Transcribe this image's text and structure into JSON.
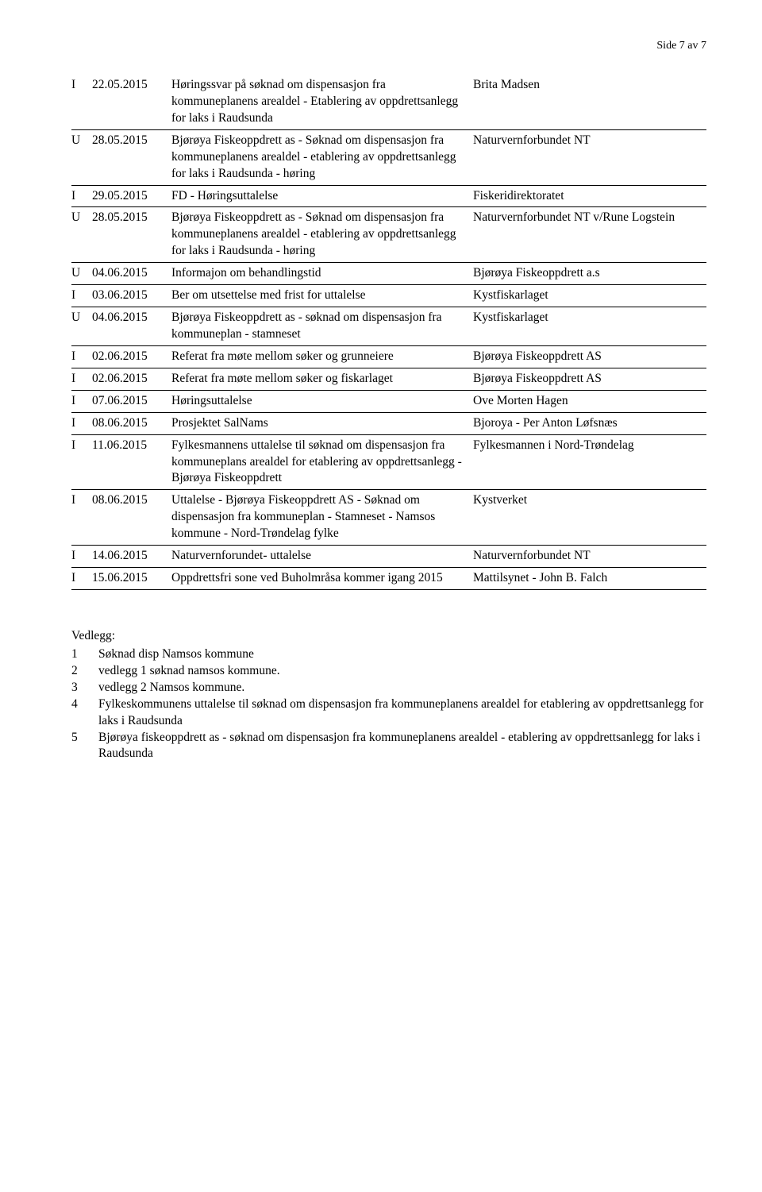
{
  "pageNumber": "Side 7 av 7",
  "rows": [
    {
      "io": "I",
      "date": "22.05.2015",
      "desc": "Høringssvar på søknad om dispensasjon fra kommuneplanens arealdel - Etablering av oppdrettsanlegg for laks i Raudsunda",
      "party": "Brita Madsen"
    },
    {
      "io": "U",
      "date": "28.05.2015",
      "desc": "Bjørøya Fiskeoppdrett as - Søknad om dispensasjon fra kommuneplanens arealdel - etablering av oppdrettsanlegg for laks i Raudsunda - høring",
      "party": "Naturvernforbundet NT"
    },
    {
      "io": "I",
      "date": "29.05.2015",
      "desc": "FD - Høringsuttalelse",
      "party": "Fiskeridirektoratet"
    },
    {
      "io": "U",
      "date": "28.05.2015",
      "desc": "Bjørøya Fiskeoppdrett as - Søknad om dispensasjon fra kommuneplanens arealdel - etablering av oppdrettsanlegg for laks i Raudsunda - høring",
      "party": "Naturvernforbundet NT v/Rune Logstein"
    },
    {
      "io": "U",
      "date": "04.06.2015",
      "desc": "Informajon om behandlingstid",
      "party": "Bjørøya Fiskeoppdrett a.s"
    },
    {
      "io": "I",
      "date": "03.06.2015",
      "desc": "Ber om utsettelse med frist for uttalelse",
      "party": "Kystfiskarlaget"
    },
    {
      "io": "U",
      "date": "04.06.2015",
      "desc": "Bjørøya Fiskeoppdrett as - søknad om dispensasjon fra kommuneplan - stamneset",
      "party": "Kystfiskarlaget"
    },
    {
      "io": "I",
      "date": "02.06.2015",
      "desc": "Referat fra møte mellom søker og grunneiere",
      "party": "Bjørøya Fiskeoppdrett AS"
    },
    {
      "io": "I",
      "date": "02.06.2015",
      "desc": "Referat fra møte mellom søker og fiskarlaget",
      "party": "Bjørøya Fiskeoppdrett AS"
    },
    {
      "io": "I",
      "date": "07.06.2015",
      "desc": "Høringsuttalelse",
      "party": "Ove Morten Hagen"
    },
    {
      "io": "I",
      "date": "08.06.2015",
      "desc": "Prosjektet SalNams",
      "party": "Bjoroya - Per Anton Løfsnæs"
    },
    {
      "io": "I",
      "date": "11.06.2015",
      "desc": "Fylkesmannens uttalelse til søknad om dispensasjon fra kommuneplans arealdel for etablering av oppdrettsanlegg - Bjørøya Fiskeoppdrett",
      "party": "Fylkesmannen i Nord-Trøndelag"
    },
    {
      "io": "I",
      "date": "08.06.2015",
      "desc": "Uttalelse - Bjørøya Fiskeoppdrett AS - Søknad om dispensasjon fra kommuneplan - Stamneset - Namsos kommune - Nord-Trøndelag fylke",
      "party": "Kystverket"
    },
    {
      "io": "I",
      "date": "14.06.2015",
      "desc": "Naturvernforundet- uttalelse",
      "party": "Naturvernforbundet NT"
    },
    {
      "io": "I",
      "date": "15.06.2015",
      "desc": "Oppdrettsfri sone ved Buholmråsa kommer igang 2015",
      "party": "Mattilsynet - John B. Falch"
    }
  ],
  "attachmentsTitle": "Vedlegg:",
  "attachments": [
    {
      "num": "1",
      "text": "Søknad disp Namsos kommune"
    },
    {
      "num": "2",
      "text": "vedlegg 1 søknad namsos kommune."
    },
    {
      "num": "3",
      "text": "vedlegg 2 Namsos kommune."
    },
    {
      "num": "4",
      "text": "Fylkeskommunens uttalelse til søknad om dispensasjon fra kommuneplanens arealdel for etablering av oppdrettsanlegg for laks i Raudsunda"
    },
    {
      "num": "5",
      "text": "Bjørøya fiskeoppdrett as - søknad om dispensasjon fra kommuneplanens arealdel - etablering av oppdrettsanlegg for laks i Raudsunda"
    }
  ]
}
